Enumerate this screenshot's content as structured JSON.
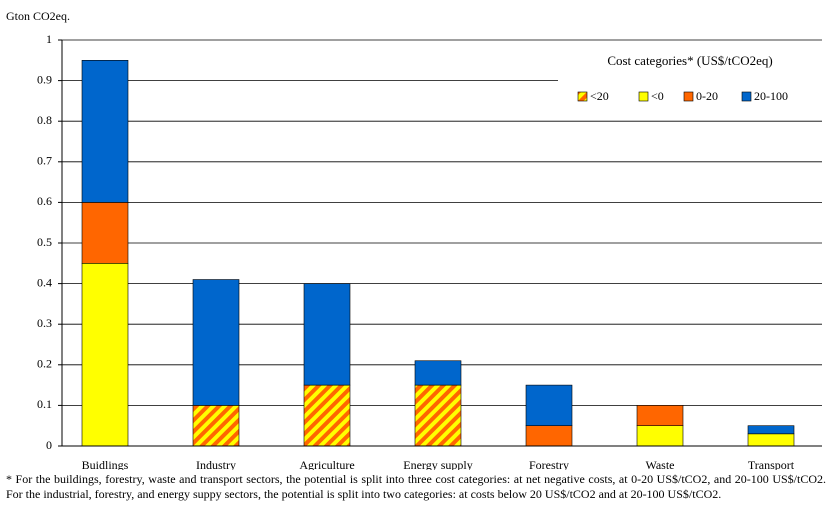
{
  "chart_data": {
    "type": "bar",
    "stacked": true,
    "y_label": "Gton CO2eq.",
    "legend_title": "Cost categories* (US$/tCO2eq)",
    "legend_position": "top-right",
    "categories": [
      "Buidlings",
      "Industry",
      "Agriculture",
      "Energy supply",
      "Forestry",
      "Waste",
      "Transport"
    ],
    "series": [
      {
        "name": "<20",
        "color": "#ff6600",
        "hatch": true,
        "values": [
          0,
          0.1,
          0.15,
          0.15,
          0,
          0,
          0
        ]
      },
      {
        "name": "<0",
        "color": "#ffff00",
        "values": [
          0.45,
          0,
          0,
          0,
          0,
          0.05,
          0.03
        ]
      },
      {
        "name": "0-20",
        "color": "#ff6600",
        "values": [
          0.15,
          0,
          0,
          0,
          0.05,
          0.05,
          0
        ]
      },
      {
        "name": "20-100",
        "color": "#0066cc",
        "values": [
          0.35,
          0.31,
          0.25,
          0.06,
          0.1,
          0,
          0.02
        ]
      }
    ],
    "ylim": [
      0,
      1
    ],
    "yticks": [
      0,
      0.1,
      0.2,
      0.3,
      0.4,
      0.5,
      0.6,
      0.7,
      0.8,
      0.9,
      1
    ],
    "grid": true,
    "note": "* For the buildings, forestry, waste and transport sectors, the potential is split into three cost categories: at net negative costs, at 0-20 US$/tCO2, and 20-100 US$/tCO2.  For the industrial, forestry, and energy suppy sectors, the potential is split into two  categories: at costs below 20 US$/tCO2 and at 20-100 US$/tCO2."
  }
}
